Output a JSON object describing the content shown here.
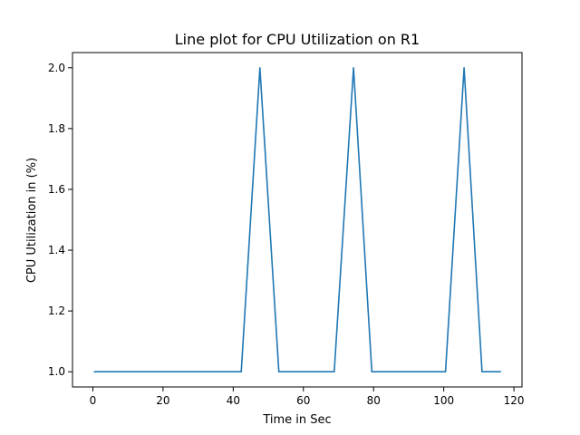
{
  "chart_data": {
    "type": "line",
    "title": "Line plot for CPU Utilization on R1",
    "xlabel": "Time in Sec",
    "ylabel": "CPU Utilization in (%)",
    "xlim": [
      -5.8,
      122.3
    ],
    "ylim": [
      0.95,
      2.05
    ],
    "xticks": [
      0,
      20,
      40,
      60,
      80,
      100,
      120
    ],
    "yticks": [
      1.0,
      1.2,
      1.4,
      1.6,
      1.8,
      2.0
    ],
    "xtick_labels": [
      "0",
      "20",
      "40",
      "60",
      "80",
      "100",
      "120"
    ],
    "ytick_labels": [
      "1.0",
      "1.2",
      "1.4",
      "1.6",
      "1.8",
      "2.0"
    ],
    "grid": false,
    "series": [
      {
        "color": "#1f77b4",
        "x": [
          0.3,
          42.3,
          47.6,
          53.0,
          68.8,
          74.3,
          79.5,
          100.5,
          105.8,
          110.9,
          116.3
        ],
        "y": [
          1.0,
          1.0,
          2.0,
          1.0,
          1.0,
          2.0,
          1.0,
          1.0,
          2.0,
          1.0,
          1.0
        ]
      }
    ]
  }
}
